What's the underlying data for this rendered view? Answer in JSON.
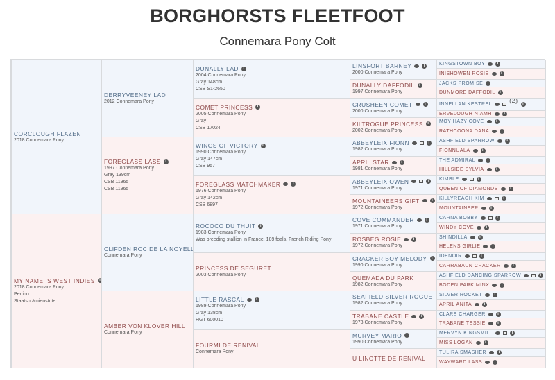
{
  "header": {
    "title": "BORGHORSTS FLEETFOOT",
    "subtitle": "Connemara Pony Colt"
  },
  "colors": {
    "sire_bg": "#f1f5fb",
    "dam_bg": "#fcf1f1",
    "sire_text": "#4f6a86",
    "dam_text": "#8e4848"
  },
  "generations": [
    [
      {
        "name": "CORCLOUGH FLAZEN",
        "lines": [
          "2018 Connemara Pony"
        ],
        "icons": []
      },
      {
        "name": "MY NAME IS WEST INDIES",
        "lines": [
          "2018 Connemara Pony",
          "Perlino",
          "Staatsprämienstute"
        ],
        "icons": [
          "info"
        ]
      }
    ],
    [
      {
        "name": "DERRYVEENEY LAD",
        "lines": [
          "2012 Connemara Pony"
        ],
        "icons": []
      },
      {
        "name": "FOREGLASS LASS",
        "lines": [
          "1997 Connemara Pony",
          "Gray 139cm",
          "CSB 11965",
          "CSB 11965"
        ],
        "icons": [
          "info"
        ]
      },
      {
        "name": "CLIFDEN ROC DE LA NOYELLE",
        "lines": [
          "Connemara Pony"
        ],
        "icons": []
      },
      {
        "name": "AMBER VON KLOVER HILL",
        "lines": [
          "Connemara Pony"
        ],
        "icons": []
      }
    ],
    [
      {
        "name": "DUNALLY LAD",
        "lines": [
          "2004 Connemara Pony",
          "Gray 148cm",
          "CSB S1-2650"
        ],
        "icons": [
          "info"
        ]
      },
      {
        "name": "COMET PRINCESS",
        "lines": [
          "2005 Connemara Pony",
          "Gray",
          "CSB 17024"
        ],
        "icons": [
          "info"
        ]
      },
      {
        "name": "WINGS OF VICTORY",
        "lines": [
          "1990 Connemara Pony",
          "Gray 147cm",
          "CSB 957"
        ],
        "icons": [
          "info"
        ]
      },
      {
        "name": "FOREGLASS MATCHMAKER",
        "lines": [
          "1976 Connemara Pony",
          "Gray 142cm",
          "CSB 6897"
        ],
        "icons": [
          "comment",
          "info"
        ]
      },
      {
        "name": "ROCOCO DU THUIT",
        "lines": [
          "1983 Connemara Pony",
          "Was breeding stallion in France, 189 foals, French Riding Pony"
        ],
        "icons": [
          "info"
        ]
      },
      {
        "name": "PRINCESS DE SEGURET",
        "lines": [
          "2003 Connemara Pony"
        ],
        "icons": []
      },
      {
        "name": "LITTLE RASCAL",
        "lines": [
          "1989 Connemara Pony",
          "Gray 138cm",
          "HGT 600010"
        ],
        "icons": [
          "comment",
          "info"
        ]
      },
      {
        "name": "FOURMI DE RENIVAL",
        "lines": [
          "Connemara Pony"
        ],
        "icons": []
      }
    ],
    [
      {
        "name": "LINSFORT BARNEY",
        "lines": [
          "2000 Connemara Pony"
        ],
        "icons": [
          "comment",
          "info"
        ]
      },
      {
        "name": "DUNALLY DAFFODIL",
        "lines": [
          "1997 Connemara Pony"
        ],
        "icons": [
          "info"
        ]
      },
      {
        "name": "CRUSHEEN COMET",
        "lines": [
          "2000 Connemara Pony"
        ],
        "icons": [
          "comment",
          "info"
        ]
      },
      {
        "name": "KILTROGUE PRINCESS",
        "lines": [
          "2002 Connemara Pony"
        ],
        "icons": [
          "info"
        ]
      },
      {
        "name": "ABBEYLEIX FIONN",
        "lines": [
          "1982 Connemara Pony"
        ],
        "icons": [
          "comment",
          "photo",
          "info"
        ]
      },
      {
        "name": "APRIL STAR",
        "lines": [
          "1981 Connemara Pony"
        ],
        "icons": [
          "comment",
          "info"
        ]
      },
      {
        "name": "ABBEYLEIX OWEN",
        "lines": [
          "1971 Connemara Pony"
        ],
        "icons": [
          "comment",
          "photo",
          "info"
        ]
      },
      {
        "name": "MOUNTAINEERS GIFT",
        "lines": [
          "1972 Connemara Pony"
        ],
        "icons": [
          "comment",
          "info"
        ]
      },
      {
        "name": "COVE COMMANDER",
        "lines": [
          "1971 Connemara Pony"
        ],
        "icons": [
          "comment",
          "info"
        ]
      },
      {
        "name": "ROSBEG ROSIE",
        "lines": [
          "1972 Connemara Pony"
        ],
        "icons": [
          "comment",
          "info"
        ]
      },
      {
        "name": "CRACKER BOY MELODY",
        "lines": [
          "1990 Connemara Pony"
        ],
        "icons": [
          "info"
        ]
      },
      {
        "name": "QUEMADA DU PARK",
        "lines": [
          "1982 Connemara Pony"
        ],
        "icons": []
      },
      {
        "name": "SEAFIELD SILVER ROGUE",
        "lines": [
          "1982 Connemara Pony"
        ],
        "icons": [
          "info"
        ]
      },
      {
        "name": "TRABANE CASTLE",
        "lines": [
          "1973 Connemara Pony"
        ],
        "icons": [
          "comment",
          "info"
        ]
      },
      {
        "name": "MURVEY MARIO",
        "lines": [
          "1990 Connemara Pony"
        ],
        "icons": [
          "info"
        ]
      },
      {
        "name": "U LINOTTE DE RENIVAL",
        "lines": [],
        "icons": []
      }
    ],
    [
      {
        "name": "KINGSTOWN BOY",
        "icons": [
          "comment",
          "info"
        ]
      },
      {
        "name": "INISHOWEN ROSIE",
        "icons": [
          "comment",
          "info"
        ]
      },
      {
        "name": "JACKS PROMISE",
        "icons": [
          "info"
        ]
      },
      {
        "name": "DUNMORE DAFFODIL",
        "icons": [
          "info"
        ]
      },
      {
        "name": "INNELLAN KESTREL",
        "icons": [
          "comment",
          "photo",
          "info"
        ],
        "note": "(2)"
      },
      {
        "name": "ERVELOUGH NIAMH",
        "icons": [
          "comment",
          "info"
        ],
        "underlined": true
      },
      {
        "name": "MOY HAZY COVE",
        "icons": [
          "comment",
          "info"
        ]
      },
      {
        "name": "RATHCOONA DANA",
        "icons": [
          "comment",
          "info"
        ]
      },
      {
        "name": "ASHFIELD SPARROW",
        "icons": [
          "comment",
          "info"
        ]
      },
      {
        "name": "FIONNUALA",
        "icons": [
          "comment",
          "info"
        ]
      },
      {
        "name": "THE ADMIRAL",
        "icons": [
          "comment",
          "info"
        ]
      },
      {
        "name": "HILLSIDE SYLVIA",
        "icons": [
          "comment",
          "info"
        ]
      },
      {
        "name": "KIMBLE",
        "icons": [
          "comment",
          "photo",
          "info"
        ]
      },
      {
        "name": "QUEEN OF DIAMONDS",
        "icons": [
          "comment",
          "info"
        ]
      },
      {
        "name": "KILLYREAGH KIM",
        "icons": [
          "comment",
          "photo",
          "info"
        ]
      },
      {
        "name": "MOUNTAINEER",
        "icons": [
          "comment",
          "info"
        ]
      },
      {
        "name": "CARNA BOBBY",
        "icons": [
          "comment",
          "photo",
          "info"
        ]
      },
      {
        "name": "WINDY COVE",
        "icons": [
          "comment",
          "info"
        ]
      },
      {
        "name": "SHINDILLA",
        "icons": [
          "comment",
          "info"
        ]
      },
      {
        "name": "HELENS GIRLIE",
        "icons": [
          "comment",
          "info"
        ]
      },
      {
        "name": "IDENOIR",
        "icons": [
          "comment",
          "photo",
          "info"
        ]
      },
      {
        "name": "CARRABAUN CRACKER",
        "icons": [
          "comment",
          "info"
        ]
      },
      {
        "name": "ASHFIELD DANCING SPARROW",
        "icons": [
          "comment",
          "photo",
          "info"
        ]
      },
      {
        "name": "BODEN PARK MINX",
        "icons": [
          "comment",
          "info"
        ]
      },
      {
        "name": "SILVER ROCKET",
        "icons": [
          "comment",
          "info"
        ]
      },
      {
        "name": "APRIL ANITA",
        "icons": [
          "comment",
          "info"
        ]
      },
      {
        "name": "CLARE CHARGER",
        "icons": [
          "comment",
          "info"
        ]
      },
      {
        "name": "TRABANE TESSIE",
        "icons": [
          "comment",
          "info"
        ]
      },
      {
        "name": "MERVYN KINGSMILL",
        "icons": [
          "comment",
          "photo",
          "info"
        ]
      },
      {
        "name": "MISS LOGAN",
        "icons": [
          "comment",
          "info"
        ]
      },
      {
        "name": "TULIRA SMASHER",
        "icons": [
          "comment",
          "info"
        ]
      },
      {
        "name": "WAYWARD LASS",
        "icons": [
          "comment",
          "info"
        ]
      }
    ]
  ]
}
